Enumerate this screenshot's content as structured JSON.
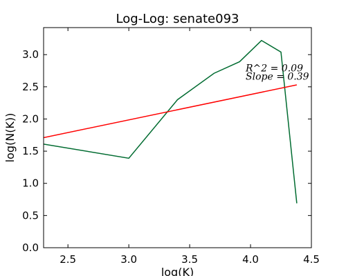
{
  "chart_data": {
    "type": "line",
    "title": "Log-Log: senate093",
    "xlabel": "log(K)",
    "ylabel": "log(N(K))",
    "xlim": [
      2.3,
      4.5
    ],
    "ylim": [
      0.0,
      3.42
    ],
    "x_ticks": [
      "2.5",
      "3.0",
      "3.5",
      "4.0",
      "4.5"
    ],
    "y_ticks": [
      "0.0",
      "0.5",
      "1.0",
      "1.5",
      "2.0",
      "2.5",
      "3.0"
    ],
    "grid": false,
    "series": [
      {
        "color": "#006b30",
        "x": [
          2.3,
          3.0,
          3.4,
          3.7,
          3.91,
          4.09,
          4.25,
          4.38
        ],
        "y": [
          1.61,
          1.39,
          2.3,
          2.71,
          2.89,
          3.22,
          3.04,
          0.69
        ]
      },
      {
        "color": "#ff0000",
        "x": [
          2.3,
          4.38
        ],
        "y": [
          1.71,
          2.53
        ]
      }
    ],
    "annotations": [
      {
        "text": "R^2 = 0.09",
        "x": 3.96,
        "y": 2.74
      },
      {
        "text": "Slope = 0.39",
        "x": 3.96,
        "y": 2.61
      }
    ]
  }
}
